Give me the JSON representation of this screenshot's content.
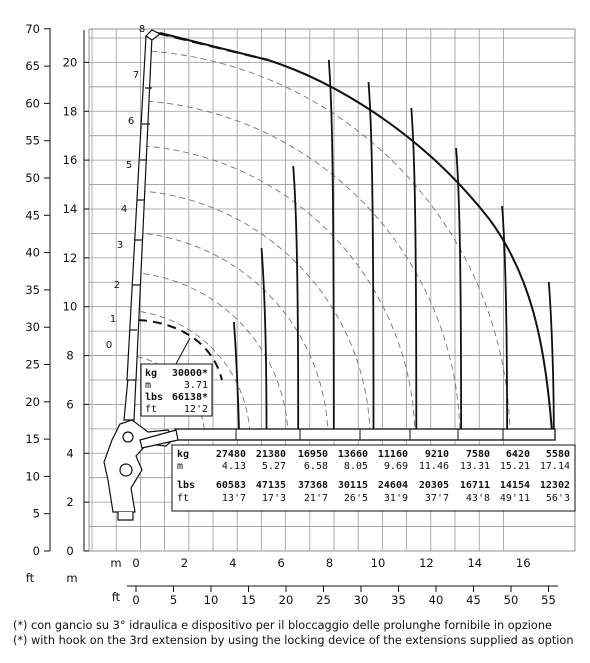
{
  "axes": {
    "ft_unit": "ft",
    "m_unit": "m",
    "m_ticks": [
      "0",
      "2",
      "4",
      "6",
      "8",
      "10",
      "12",
      "14",
      "16"
    ],
    "ft_ticks": [
      "0",
      "5",
      "10",
      "15",
      "20",
      "25",
      "30",
      "35",
      "40",
      "45",
      "50",
      "55"
    ],
    "ft_left_ticks": [
      "0",
      "5",
      "10",
      "15",
      "20",
      "25",
      "30",
      "35",
      "40",
      "45",
      "50",
      "55",
      "60",
      "65",
      "70"
    ],
    "m_left_ticks": [
      "0",
      "2",
      "4",
      "6",
      "8",
      "10",
      "12",
      "14",
      "16",
      "18",
      "20"
    ]
  },
  "extension_labels": [
    "0",
    "1",
    "2",
    "3",
    "4",
    "5",
    "6",
    "7",
    "8"
  ],
  "highlight": {
    "kg_label": "kg",
    "kg_value": "30000*",
    "m_label": "m",
    "m_value": "3.71",
    "lbs_label": "lbs",
    "lbs_value": "66138*",
    "ft_label": "ft",
    "ft_value": "12'2"
  },
  "capacity_table": {
    "kg_label": "kg",
    "m_label": "m",
    "lbs_label": "lbs",
    "ft_label": "ft",
    "columns": [
      {
        "kg": "27480",
        "m": "4.13",
        "lbs": "60583",
        "ft": "13'7"
      },
      {
        "kg": "21380",
        "m": "5.27",
        "lbs": "47135",
        "ft": "17'3"
      },
      {
        "kg": "16950",
        "m": "6.58",
        "lbs": "37368",
        "ft": "21'7"
      },
      {
        "kg": "13660",
        "m": "8.05",
        "lbs": "30115",
        "ft": "26'5"
      },
      {
        "kg": "11160",
        "m": "9.69",
        "lbs": "24604",
        "ft": "31'9"
      },
      {
        "kg": "9210",
        "m": "11.46",
        "lbs": "20305",
        "ft": "37'7"
      },
      {
        "kg": "7580",
        "m": "13.31",
        "lbs": "16711",
        "ft": "43'8"
      },
      {
        "kg": "6420",
        "m": "15.21",
        "lbs": "14154",
        "ft": "49'11"
      },
      {
        "kg": "5580",
        "m": "17.14",
        "lbs": "12302",
        "ft": "56'3"
      }
    ]
  },
  "chart_data": {
    "type": "table",
    "radius_m": [
      3.71,
      4.13,
      5.27,
      6.58,
      8.05,
      9.69,
      11.46,
      13.31,
      15.21,
      17.14
    ],
    "capacity_kg": [
      30000,
      27480,
      21380,
      16950,
      13660,
      11160,
      9210,
      7580,
      6420,
      5580
    ],
    "capacity_lbs": [
      66138,
      60583,
      47135,
      37368,
      30115,
      24604,
      20305,
      16711,
      14154,
      12302
    ],
    "radius_ft": [
      "12'2",
      "13'7",
      "17'3",
      "21'7",
      "26'5",
      "31'9",
      "37'7",
      "43'8",
      "49'11",
      "56'3"
    ],
    "xlim_m": [
      0,
      18
    ],
    "ylim_m": [
      0,
      21
    ],
    "extensions": 8
  },
  "footnotes": {
    "it": "(*) con gancio su 3° idraulica e dispositivo per il bloccaggio delle prolunghe fornibile in opzione",
    "en": "(*) with hook on the 3rd extension by using the locking device of the extensions supplied as option"
  }
}
